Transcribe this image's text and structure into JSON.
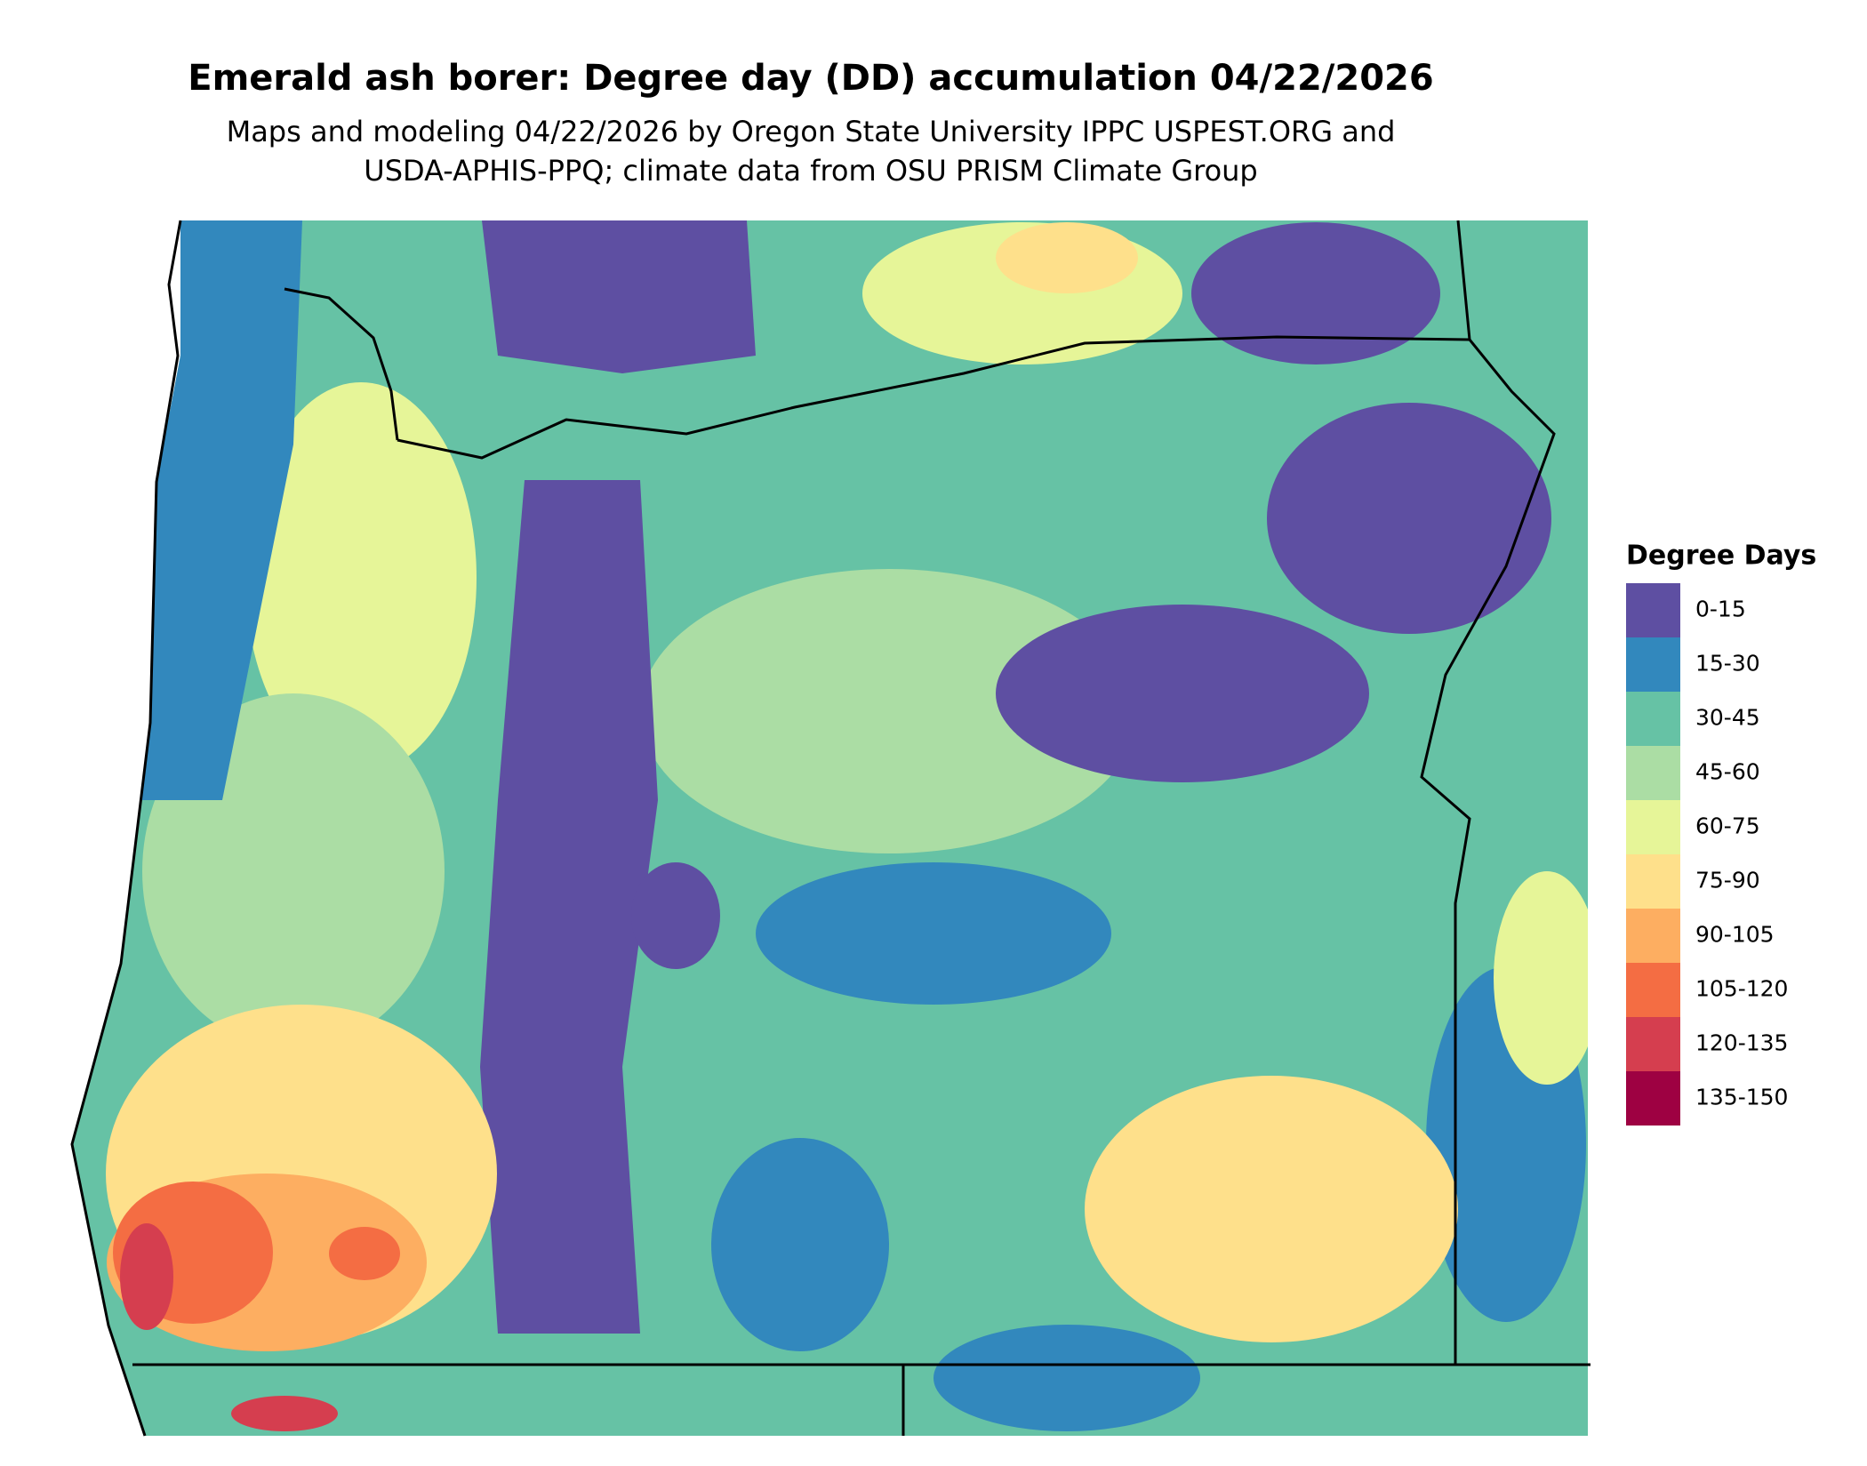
{
  "title": "Emerald ash borer: Degree day (DD) accumulation 04/22/2026",
  "subtitle": [
    "Maps and modeling 04/22/2026 by Oregon State University IPPC USPEST.ORG and",
    "USDA-APHIS-PPQ; climate data from OSU PRISM Climate Group"
  ],
  "legend": {
    "title": "Degree Days",
    "items": [
      {
        "label": "0-15",
        "color": "#5e4fa2"
      },
      {
        "label": "15-30",
        "color": "#3288bd"
      },
      {
        "label": "30-45",
        "color": "#66c2a5"
      },
      {
        "label": "45-60",
        "color": "#abdda4"
      },
      {
        "label": "60-75",
        "color": "#e6f598"
      },
      {
        "label": "75-90",
        "color": "#fee08b"
      },
      {
        "label": "90-105",
        "color": "#fdae61"
      },
      {
        "label": "105-120",
        "color": "#f46d43"
      },
      {
        "label": "120-135",
        "color": "#d53e4f"
      },
      {
        "label": "135-150",
        "color": "#9e0142"
      }
    ]
  }
}
